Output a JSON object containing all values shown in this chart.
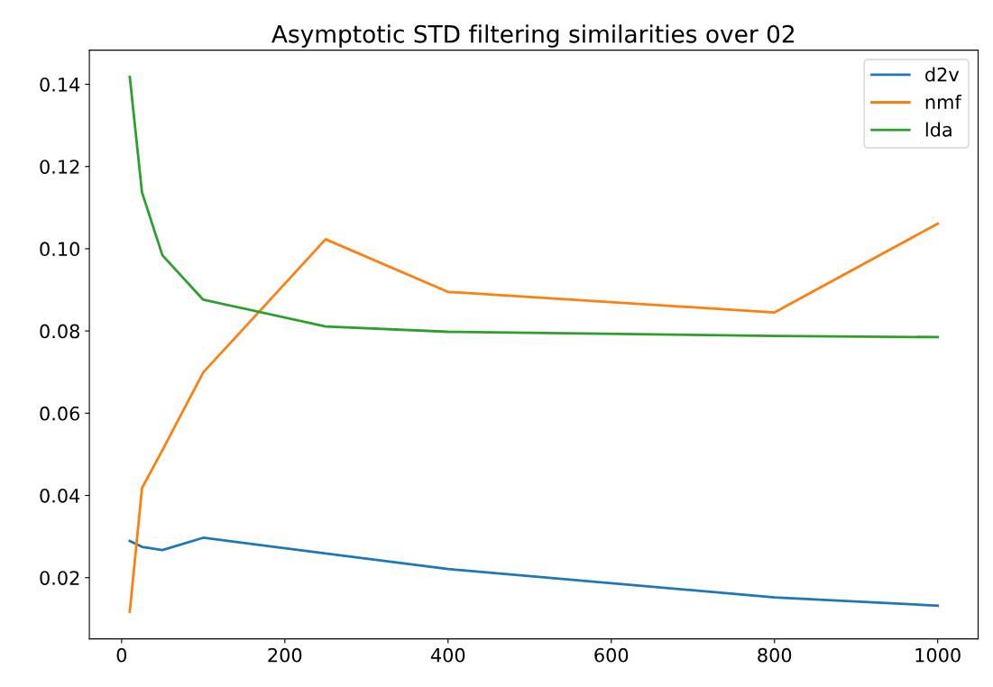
{
  "chart_data": {
    "type": "line",
    "title": "Asymptotic STD filtering similarities over 02",
    "x": [
      10,
      25,
      50,
      100,
      250,
      400,
      800,
      1000
    ],
    "series": [
      {
        "name": "d2v",
        "color": "#1f77b4",
        "values": [
          0.0289,
          0.0275,
          0.0267,
          0.0297,
          0.0259,
          0.0221,
          0.0152,
          0.0132
        ]
      },
      {
        "name": "nmf",
        "color": "#ff7f0e",
        "values": [
          0.0117,
          0.0418,
          0.051,
          0.0699,
          0.1023,
          0.0895,
          0.0845,
          0.1061
        ]
      },
      {
        "name": "lda",
        "color": "#2ca02c",
        "values": [
          0.1418,
          0.1137,
          0.0984,
          0.0876,
          0.0811,
          0.0798,
          0.0788,
          0.0785
        ]
      }
    ],
    "xlim": [
      -39.5,
      1049.5
    ],
    "xticks": [
      0,
      200,
      400,
      600,
      800,
      1000
    ],
    "ylim": [
      0.0051,
      0.1483
    ],
    "yticks": [
      0.02,
      0.04,
      0.06,
      0.08,
      {
        "value": 0.1,
        "label": "0.10"
      },
      0.12,
      0.14
    ],
    "legend": "top right",
    "grid": false
  }
}
